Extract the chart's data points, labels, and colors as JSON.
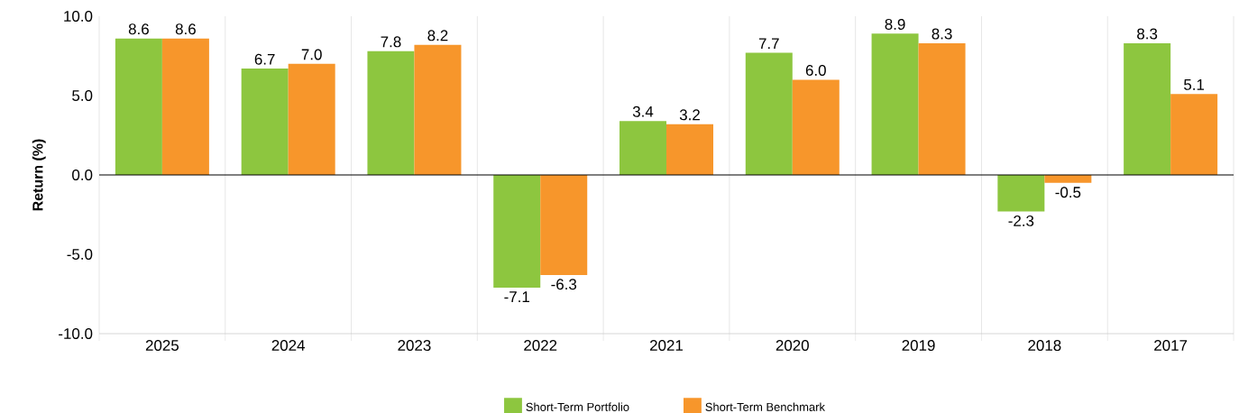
{
  "chart_data": {
    "type": "bar",
    "ylabel": "Return (%)",
    "categories": [
      "2025",
      "2024",
      "2023",
      "2022",
      "2021",
      "2020",
      "2019",
      "2018",
      "2017"
    ],
    "series": [
      {
        "name": "Short-Term Portfolio",
        "color": "#8dc63f",
        "values": [
          8.6,
          6.7,
          7.8,
          -7.1,
          3.4,
          7.7,
          8.9,
          -2.3,
          8.3
        ],
        "value_labels": [
          "8.6",
          "6.7",
          "7.8",
          "-7.1",
          "3.4",
          "7.7",
          "8.9",
          "-2.3",
          "8.3"
        ]
      },
      {
        "name": "Short-Term Benchmark",
        "color": "#f7962b",
        "values": [
          8.6,
          7.0,
          8.2,
          -6.3,
          3.2,
          6.0,
          8.3,
          -0.5,
          5.1
        ],
        "value_labels": [
          "8.6",
          "7.0",
          "8.2",
          "-6.3",
          "3.2",
          "6.0",
          "8.3",
          "-0.5",
          "5.1"
        ]
      }
    ],
    "ylim": [
      -10,
      10
    ],
    "yticks": [
      {
        "value": -10,
        "label": "-10.0"
      },
      {
        "value": -5,
        "label": "-5.0"
      },
      {
        "value": 0,
        "label": "0.0"
      },
      {
        "value": 5,
        "label": "5.0"
      },
      {
        "value": 10,
        "label": "10.0"
      }
    ],
    "grid": "x",
    "legend": "bottom"
  }
}
